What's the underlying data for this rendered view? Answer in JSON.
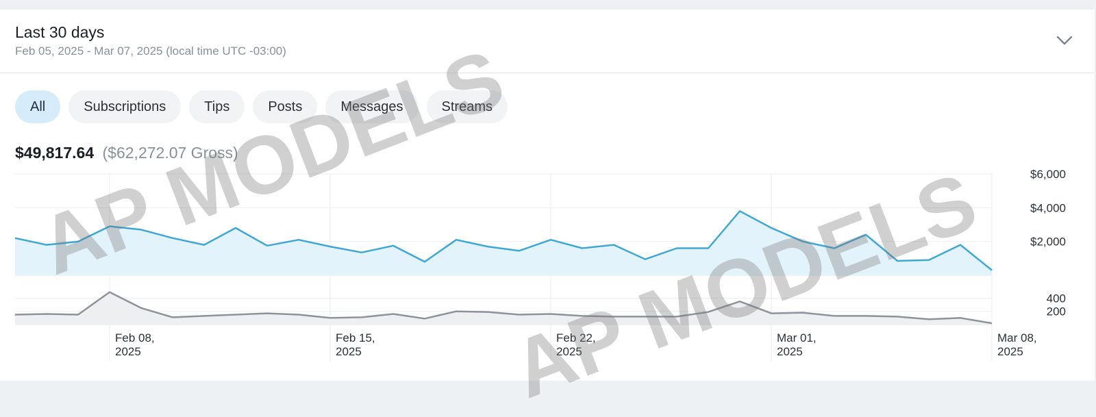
{
  "header": {
    "title": "Last 30 days",
    "range": "Feb 05, 2025 - Mar 07, 2025 (local time UTC -03:00)"
  },
  "tabs": [
    {
      "label": "All",
      "active": true
    },
    {
      "label": "Subscriptions",
      "active": false
    },
    {
      "label": "Tips",
      "active": false
    },
    {
      "label": "Posts",
      "active": false
    },
    {
      "label": "Messages",
      "active": false
    },
    {
      "label": "Streams",
      "active": false
    }
  ],
  "totals": {
    "net": "$49,817.64",
    "gross": "($62,272.07 Gross)"
  },
  "watermark": "AP MODELS",
  "colors": {
    "earnings_line": "#3da8d6",
    "earnings_fill": "#e3f3fb",
    "count_line": "#8e9299",
    "count_fill": "#eeeff1",
    "active_tab": "#d7ecfa"
  },
  "chart_data": [
    {
      "type": "area",
      "series": [
        {
          "values": [
            2200,
            1800,
            2000,
            2900,
            2700,
            2200,
            1800,
            2800,
            1750,
            2100,
            1700,
            1350,
            1750,
            800,
            2100,
            1700,
            1450,
            2100,
            1600,
            1800,
            950,
            1600,
            1600,
            3800,
            2800,
            2000,
            1600,
            2400,
            850,
            900,
            1800,
            300
          ]
        }
      ],
      "x": [
        "Feb 05",
        "Feb 06",
        "Feb 07",
        "Feb 08",
        "Feb 09",
        "Feb 10",
        "Feb 11",
        "Feb 12",
        "Feb 13",
        "Feb 14",
        "Feb 15",
        "Feb 16",
        "Feb 17",
        "Feb 18",
        "Feb 19",
        "Feb 20",
        "Feb 21",
        "Feb 22",
        "Feb 23",
        "Feb 24",
        "Feb 25",
        "Feb 26",
        "Feb 27",
        "Feb 28",
        "Mar 01",
        "Mar 02",
        "Mar 03",
        "Mar 04",
        "Mar 05",
        "Mar 06",
        "Mar 07",
        "Mar 08"
      ],
      "y_ticks": [
        "$2,000",
        "$4,000",
        "$6,000"
      ],
      "y_tick_values": [
        2000,
        4000,
        6000
      ],
      "ylim": [
        0,
        6000
      ]
    },
    {
      "type": "area",
      "series": [
        {
          "values": [
            150,
            160,
            150,
            490,
            250,
            110,
            130,
            150,
            170,
            150,
            100,
            110,
            160,
            90,
            200,
            190,
            150,
            160,
            130,
            120,
            120,
            120,
            190,
            350,
            170,
            180,
            130,
            130,
            120,
            80,
            100,
            20
          ]
        }
      ],
      "x": [
        "Feb 05",
        "Feb 06",
        "Feb 07",
        "Feb 08",
        "Feb 09",
        "Feb 10",
        "Feb 11",
        "Feb 12",
        "Feb 13",
        "Feb 14",
        "Feb 15",
        "Feb 16",
        "Feb 17",
        "Feb 18",
        "Feb 19",
        "Feb 20",
        "Feb 21",
        "Feb 22",
        "Feb 23",
        "Feb 24",
        "Feb 25",
        "Feb 26",
        "Feb 27",
        "Feb 28",
        "Mar 01",
        "Mar 02",
        "Mar 03",
        "Mar 04",
        "Mar 05",
        "Mar 06",
        "Mar 07",
        "Mar 08"
      ],
      "y_ticks": [
        "200",
        "400"
      ],
      "y_tick_values": [
        200,
        400
      ],
      "ylim": [
        0,
        600
      ]
    }
  ],
  "x_axis": {
    "ticks": [
      {
        "date": "Feb 08",
        "line1": "Feb 08,",
        "line2": "2025"
      },
      {
        "date": "Feb 15",
        "line1": "Feb 15,",
        "line2": "2025"
      },
      {
        "date": "Feb 22",
        "line1": "Feb 22,",
        "line2": "2025"
      },
      {
        "date": "Mar 01",
        "line1": "Mar 01,",
        "line2": "2025"
      },
      {
        "date": "Mar 08",
        "line1": "Mar 08,",
        "line2": "2025"
      }
    ]
  }
}
